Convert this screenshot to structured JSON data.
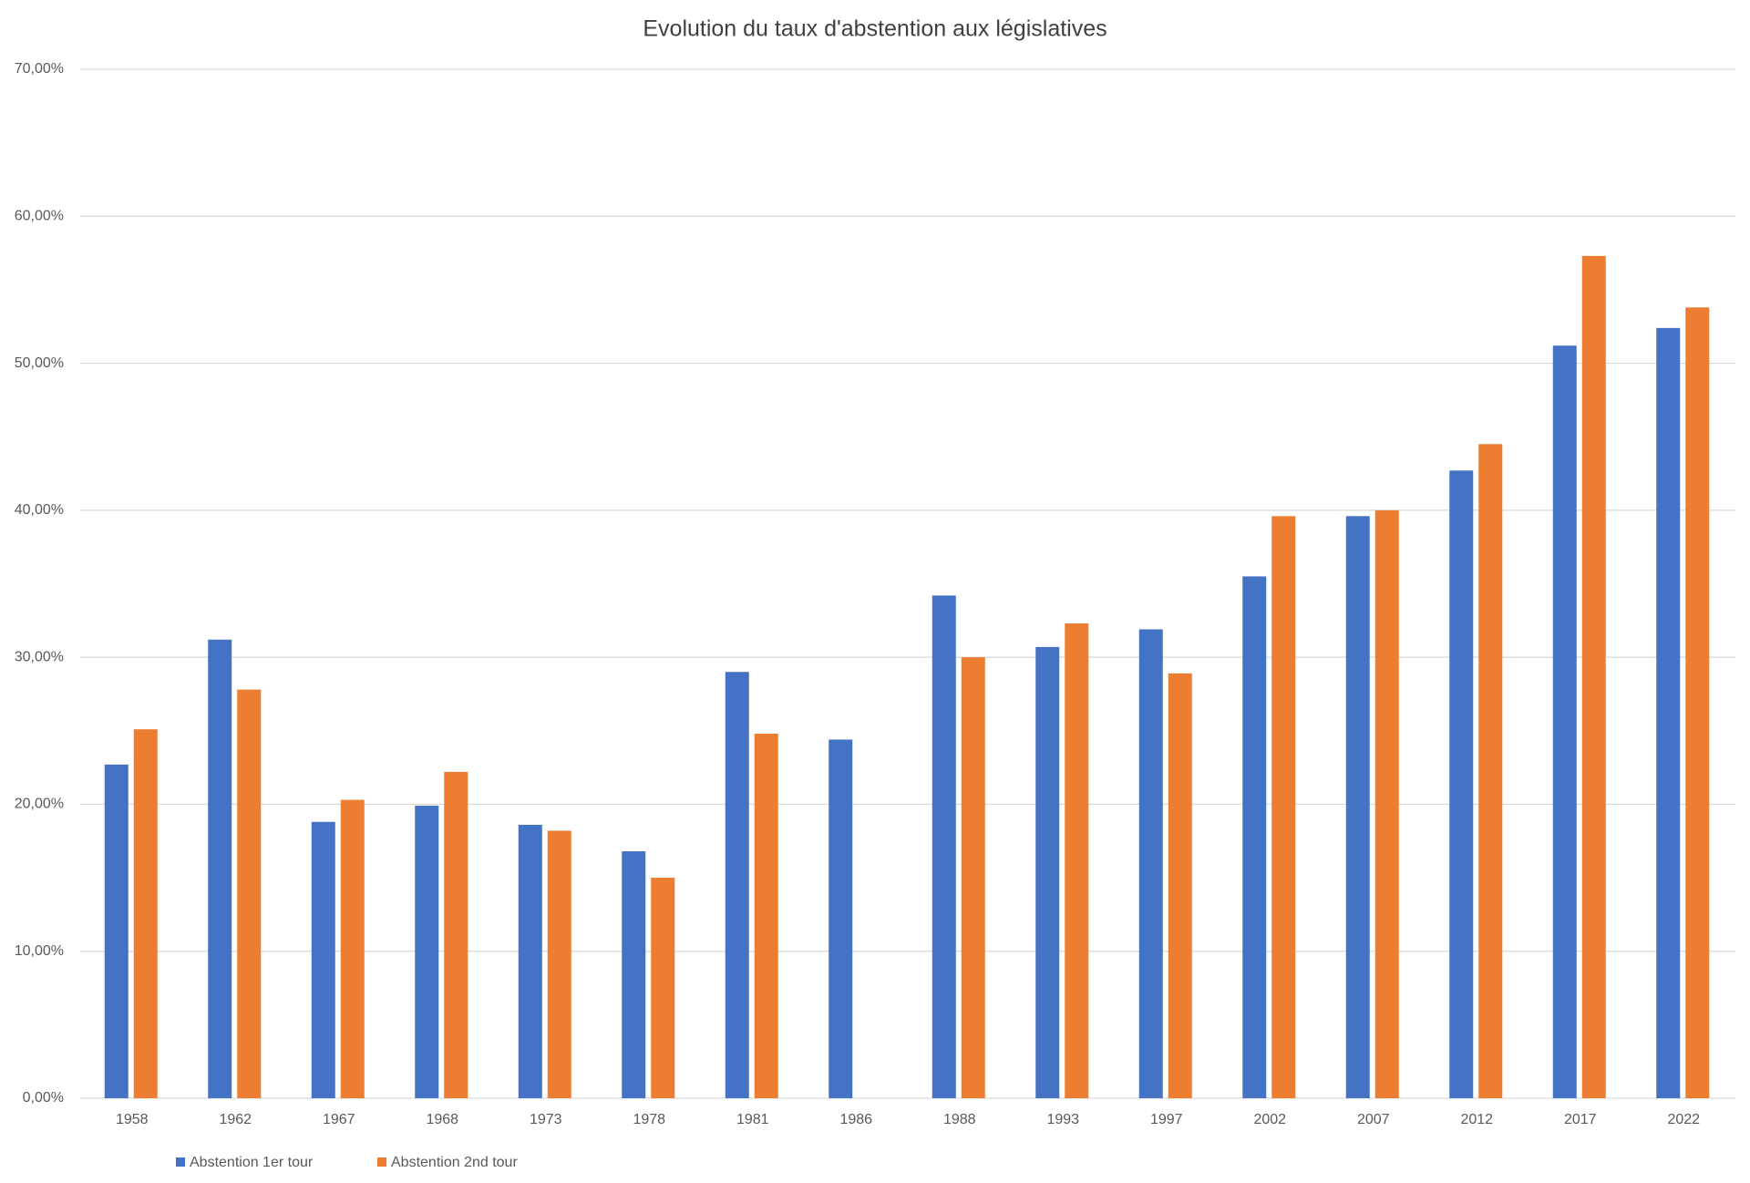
{
  "chart_data": {
    "type": "bar",
    "title": "Evolution du taux d'abstention aux législatives",
    "categories": [
      "1958",
      "1962",
      "1967",
      "1968",
      "1973",
      "1978",
      "1981",
      "1986",
      "1988",
      "1993",
      "1997",
      "2002",
      "2007",
      "2012",
      "2017",
      "2022"
    ],
    "series": [
      {
        "name": "Abstention 1er tour",
        "color": "#4472c4",
        "values": [
          22.7,
          31.2,
          18.8,
          19.9,
          18.6,
          16.8,
          29.0,
          24.4,
          34.2,
          30.7,
          31.9,
          35.5,
          39.6,
          42.7,
          51.2,
          52.4
        ]
      },
      {
        "name": "Abstention 2nd tour",
        "color": "#ed7d31",
        "values": [
          25.1,
          27.8,
          20.3,
          22.2,
          18.2,
          15.0,
          24.8,
          null,
          30.0,
          32.3,
          28.9,
          39.6,
          40.0,
          44.5,
          57.3,
          53.8
        ]
      }
    ],
    "ylim": [
      0,
      70
    ],
    "yticks": [
      {
        "value": 0,
        "label": "0,00%"
      },
      {
        "value": 10,
        "label": "10,00%"
      },
      {
        "value": 20,
        "label": "20,00%"
      },
      {
        "value": 30,
        "label": "30,00%"
      },
      {
        "value": 40,
        "label": "40,00%"
      },
      {
        "value": 50,
        "label": "50,00%"
      },
      {
        "value": 60,
        "label": "60,00%"
      },
      {
        "value": 70,
        "label": "70,00%"
      }
    ],
    "grid": true,
    "legend": "bottom-left"
  }
}
